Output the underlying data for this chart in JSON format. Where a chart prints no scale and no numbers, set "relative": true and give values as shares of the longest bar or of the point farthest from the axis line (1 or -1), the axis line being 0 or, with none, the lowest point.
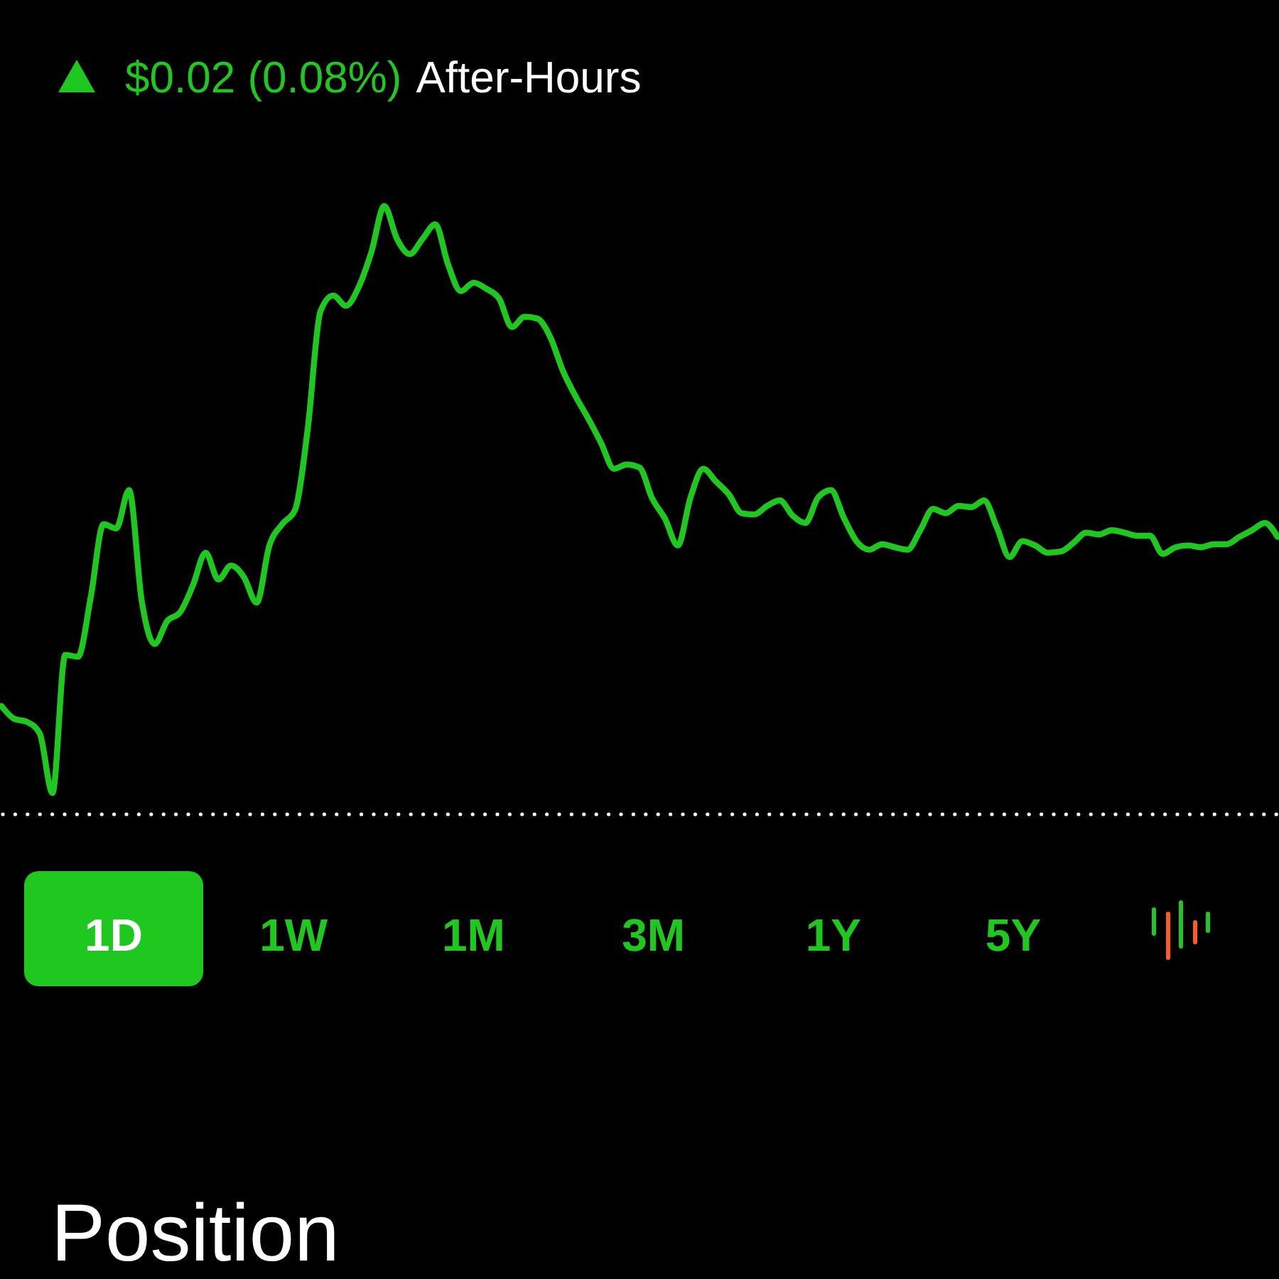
{
  "chart_data": {
    "type": "line",
    "relative": true,
    "categories": [
      null,
      null,
      null,
      null,
      null,
      null,
      null,
      null,
      null,
      null,
      null,
      null,
      null,
      null,
      null,
      null,
      null,
      null,
      null,
      null,
      null,
      null,
      null,
      null,
      null,
      null,
      null,
      null,
      null,
      null,
      null,
      null,
      null,
      null,
      null,
      null,
      null,
      null,
      null,
      null,
      null,
      null,
      null,
      null,
      null,
      null,
      null,
      null,
      null,
      null,
      null,
      null,
      null,
      null,
      null,
      null,
      null,
      null,
      null,
      null,
      null,
      null,
      null,
      null,
      null,
      null,
      null,
      null,
      null,
      null,
      null,
      null,
      null,
      null,
      null,
      null,
      null,
      null,
      null,
      null,
      null,
      null,
      null,
      null,
      null,
      null,
      null,
      null,
      null,
      null,
      null,
      null,
      null,
      null,
      null,
      null,
      null,
      null,
      null,
      null,
      null
    ],
    "series": [
      {
        "color": "#1ec81e",
        "values": [
          0.178,
          0.157,
          0.152,
          0.133,
          0.035,
          0.262,
          0.259,
          0.357,
          0.477,
          0.47,
          0.533,
          0.35,
          0.28,
          0.318,
          0.332,
          0.376,
          0.43,
          0.386,
          0.409,
          0.39,
          0.348,
          0.442,
          0.477,
          0.5,
          0.633,
          0.827,
          0.853,
          0.836,
          0.867,
          0.925,
          1,
          0.946,
          0.921,
          0.946,
          0.97,
          0.904,
          0.86,
          0.874,
          0.864,
          0.848,
          0.801,
          0.818,
          0.815,
          0.785,
          0.729,
          0.687,
          0.65,
          0.61,
          0.568,
          0.575,
          0.57,
          0.519,
          0.486,
          0.442,
          0.521,
          0.568,
          0.547,
          0.526,
          0.495,
          0.493,
          0.507,
          0.516,
          0.491,
          0.479,
          0.521,
          0.533,
          0.488,
          0.449,
          0.435,
          0.444,
          0.439,
          0.435,
          0.467,
          0.502,
          0.495,
          0.507,
          0.505,
          0.516,
          0.472,
          0.423,
          0.449,
          0.442,
          0.43,
          0.432,
          0.446,
          0.463,
          0.46,
          0.467,
          0.463,
          0.458,
          0.458,
          0.428,
          0.439,
          0.442,
          0.439,
          0.444,
          0.444,
          0.456,
          0.467,
          0.479,
          0.456
        ]
      }
    ],
    "ref_lines": [
      {
        "axis": "y",
        "value": 0,
        "color": "#ffffff",
        "line_style": "dotted"
      }
    ],
    "annotations": [
      "$0.02 (0.08%)",
      "After-Hours",
      "1D",
      "1W",
      "1M",
      "3M",
      "1Y",
      "5Y",
      "Position"
    ]
  }
}
